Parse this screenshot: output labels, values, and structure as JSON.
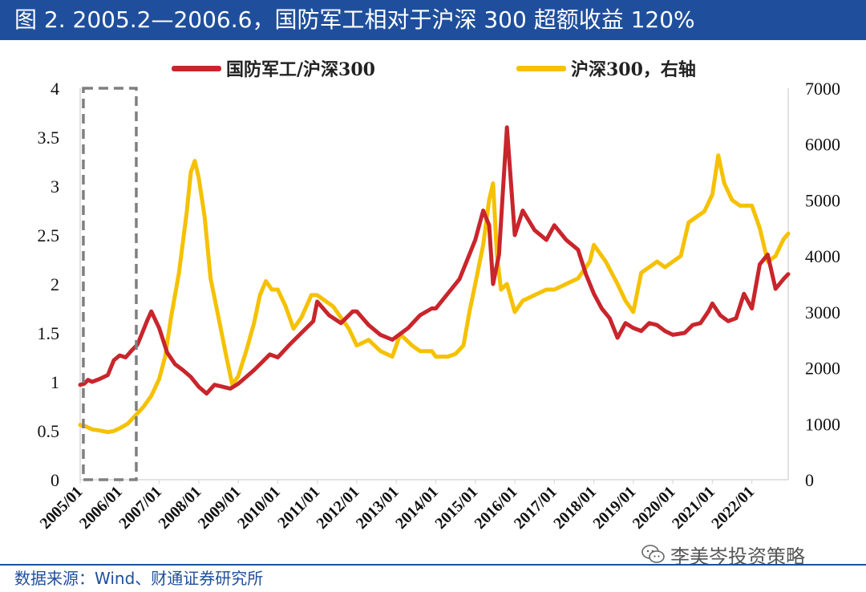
{
  "header": {
    "title": "图 2. 2005.2—2006.6，国防军工相对于沪深 300 超额收益 120%"
  },
  "footer": {
    "source": "数据来源：Wind、财通证券研究所",
    "watermark": "李美岑投资策略",
    "watermark_icon": "wechat-icon"
  },
  "colors": {
    "title_bg": "#1f4f9c",
    "relative_series": "#c9252c",
    "hs300_series": "#f5c100",
    "highlight_box": "#7f7f7f"
  },
  "chart_data": {
    "type": "line",
    "title": "",
    "xlabel": "",
    "ylabel_left": "",
    "ylabel_right": "",
    "legend_position": "top",
    "grid": false,
    "x_range": [
      2005.0,
      2022.92
    ],
    "ylim_left": [
      0,
      4
    ],
    "ylim_right": [
      0,
      7000
    ],
    "left_ticks": [
      "0",
      "0.5",
      "1",
      "1.5",
      "2",
      "2.5",
      "3",
      "3.5",
      "4"
    ],
    "right_ticks": [
      "0",
      "1000",
      "2000",
      "3000",
      "4000",
      "5000",
      "6000",
      "7000"
    ],
    "x_ticks": [
      "2005/01",
      "2006/01",
      "2007/01",
      "2008/01",
      "2009/01",
      "2010/01",
      "2011/01",
      "2012/01",
      "2013/01",
      "2014/01",
      "2015/01",
      "2016/01",
      "2017/01",
      "2018/01",
      "2019/01",
      "2020/01",
      "2021/01",
      "2022/01"
    ],
    "highlight_period": {
      "label": "2005.2—2006.6",
      "x_start": 2005.08,
      "x_end": 2006.42,
      "y_min": 0,
      "y_max": 4
    },
    "series": [
      {
        "name": "国防军工/沪深300",
        "axis": "left",
        "x": [
          2005.0,
          2005.1,
          2005.2,
          2005.3,
          2005.5,
          2005.7,
          2005.85,
          2006.0,
          2006.15,
          2006.3,
          2006.45,
          2006.55,
          2006.7,
          2006.8,
          2007.0,
          2007.2,
          2007.4,
          2007.6,
          2007.8,
          2008.0,
          2008.2,
          2008.4,
          2008.6,
          2008.8,
          2009.0,
          2009.2,
          2009.4,
          2009.6,
          2009.8,
          2010.0,
          2010.3,
          2010.6,
          2010.9,
          2011.0,
          2011.3,
          2011.6,
          2011.9,
          2012.0,
          2012.3,
          2012.6,
          2012.9,
          2013.0,
          2013.3,
          2013.6,
          2013.9,
          2014.0,
          2014.3,
          2014.6,
          2014.8,
          2015.0,
          2015.2,
          2015.35,
          2015.45,
          2015.6,
          2015.7,
          2015.8,
          2016.0,
          2016.2,
          2016.5,
          2016.8,
          2017.0,
          2017.3,
          2017.6,
          2017.8,
          2018.0,
          2018.2,
          2018.4,
          2018.6,
          2018.8,
          2019.0,
          2019.2,
          2019.4,
          2019.6,
          2019.8,
          2020.0,
          2020.3,
          2020.5,
          2020.7,
          2020.9,
          2021.0,
          2021.2,
          2021.4,
          2021.6,
          2021.8,
          2022.0,
          2022.2,
          2022.4,
          2022.6,
          2022.8,
          2022.92
        ],
        "values": [
          0.97,
          0.98,
          1.02,
          1.0,
          1.03,
          1.07,
          1.22,
          1.27,
          1.25,
          1.32,
          1.38,
          1.48,
          1.63,
          1.72,
          1.55,
          1.3,
          1.18,
          1.12,
          1.05,
          0.95,
          0.88,
          0.97,
          0.95,
          0.93,
          0.98,
          1.05,
          1.12,
          1.2,
          1.28,
          1.25,
          1.38,
          1.5,
          1.62,
          1.82,
          1.68,
          1.6,
          1.72,
          1.72,
          1.58,
          1.48,
          1.43,
          1.46,
          1.55,
          1.68,
          1.75,
          1.75,
          1.9,
          2.05,
          2.25,
          2.45,
          2.75,
          2.6,
          2.0,
          2.3,
          2.95,
          3.6,
          2.5,
          2.75,
          2.55,
          2.45,
          2.6,
          2.45,
          2.35,
          2.1,
          1.9,
          1.75,
          1.65,
          1.45,
          1.6,
          1.55,
          1.52,
          1.6,
          1.58,
          1.52,
          1.48,
          1.5,
          1.58,
          1.6,
          1.72,
          1.8,
          1.68,
          1.62,
          1.65,
          1.9,
          1.75,
          2.2,
          2.3,
          1.95,
          2.05,
          2.1
        ]
      },
      {
        "name": "沪深300，右轴",
        "axis": "right",
        "x": [
          2005.0,
          2005.15,
          2005.3,
          2005.5,
          2005.7,
          2005.85,
          2006.0,
          2006.2,
          2006.4,
          2006.6,
          2006.8,
          2007.0,
          2007.15,
          2007.3,
          2007.5,
          2007.7,
          2007.8,
          2007.9,
          2008.0,
          2008.15,
          2008.3,
          2008.5,
          2008.7,
          2008.85,
          2009.0,
          2009.2,
          2009.4,
          2009.55,
          2009.7,
          2009.85,
          2010.0,
          2010.2,
          2010.4,
          2010.6,
          2010.85,
          2011.0,
          2011.2,
          2011.4,
          2011.6,
          2011.8,
          2012.0,
          2012.3,
          2012.6,
          2012.9,
          2013.1,
          2013.4,
          2013.6,
          2013.9,
          2014.0,
          2014.3,
          2014.5,
          2014.7,
          2014.85,
          2015.0,
          2015.2,
          2015.35,
          2015.45,
          2015.55,
          2015.65,
          2015.8,
          2016.0,
          2016.2,
          2016.5,
          2016.8,
          2017.0,
          2017.3,
          2017.6,
          2017.9,
          2018.0,
          2018.3,
          2018.6,
          2018.8,
          2019.0,
          2019.2,
          2019.4,
          2019.6,
          2019.8,
          2020.0,
          2020.2,
          2020.4,
          2020.6,
          2020.8,
          2021.0,
          2021.15,
          2021.3,
          2021.5,
          2021.7,
          2021.9,
          2022.0,
          2022.2,
          2022.4,
          2022.6,
          2022.8,
          2022.92
        ],
        "values": [
          980,
          950,
          900,
          880,
          850,
          870,
          920,
          1000,
          1150,
          1300,
          1500,
          1800,
          2200,
          2900,
          3700,
          4800,
          5500,
          5700,
          5400,
          4700,
          3600,
          2900,
          2200,
          1700,
          1850,
          2300,
          2800,
          3300,
          3550,
          3400,
          3400,
          3100,
          2700,
          2900,
          3300,
          3300,
          3200,
          3100,
          2900,
          2700,
          2400,
          2500,
          2300,
          2200,
          2600,
          2400,
          2300,
          2300,
          2200,
          2200,
          2250,
          2400,
          3000,
          3500,
          4200,
          5000,
          5300,
          4000,
          3400,
          3500,
          3000,
          3200,
          3300,
          3400,
          3400,
          3500,
          3600,
          3900,
          4200,
          3900,
          3500,
          3200,
          3000,
          3700,
          3800,
          3900,
          3800,
          3900,
          4000,
          4600,
          4700,
          4800,
          5100,
          5800,
          5300,
          5000,
          4900,
          4900,
          4900,
          4500,
          3900,
          4000,
          4300,
          4400
        ]
      }
    ]
  }
}
